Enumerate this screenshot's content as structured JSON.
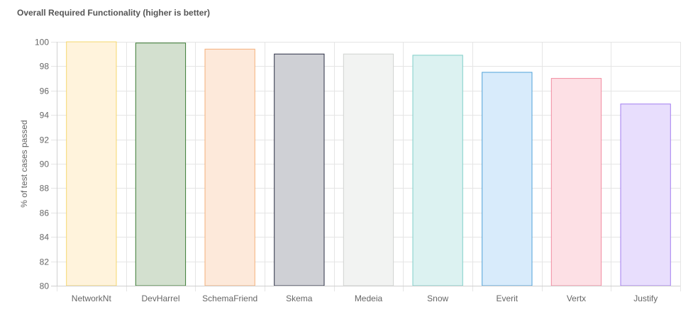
{
  "chart_data": {
    "type": "bar",
    "title": "Overall Required Functionality (higher is better)",
    "xlabel": "",
    "ylabel": "% of test cases passed",
    "ylim": [
      80,
      100
    ],
    "yticks": [
      80,
      82,
      84,
      86,
      88,
      90,
      92,
      94,
      96,
      98,
      100
    ],
    "grid": true,
    "legend": "none",
    "categories": [
      "NetworkNt",
      "DevHarrel",
      "SchemaFriend",
      "Skema",
      "Medeia",
      "Snow",
      "Everit",
      "Vertx",
      "Justify"
    ],
    "values": [
      100,
      99.9,
      99.4,
      99.0,
      99.0,
      98.9,
      97.5,
      97.0,
      94.9
    ],
    "bar_colors": [
      {
        "fill": "#fff3dc",
        "stroke": "#f5d76e"
      },
      {
        "fill": "#d3e0cf",
        "stroke": "#3a7a33"
      },
      {
        "fill": "#fde9da",
        "stroke": "#f4b07a"
      },
      {
        "fill": "#cfd0d5",
        "stroke": "#2b2f44"
      },
      {
        "fill": "#f2f3f2",
        "stroke": "#d0d3d0"
      },
      {
        "fill": "#dcf2f1",
        "stroke": "#7fcfc9"
      },
      {
        "fill": "#d8ebfb",
        "stroke": "#4ea1d8"
      },
      {
        "fill": "#fde0e5",
        "stroke": "#f28aa0"
      },
      {
        "fill": "#e8defd",
        "stroke": "#a37ef0"
      }
    ],
    "grid_color": "#e5e5e5",
    "axis_color": "#d0d0d0"
  }
}
